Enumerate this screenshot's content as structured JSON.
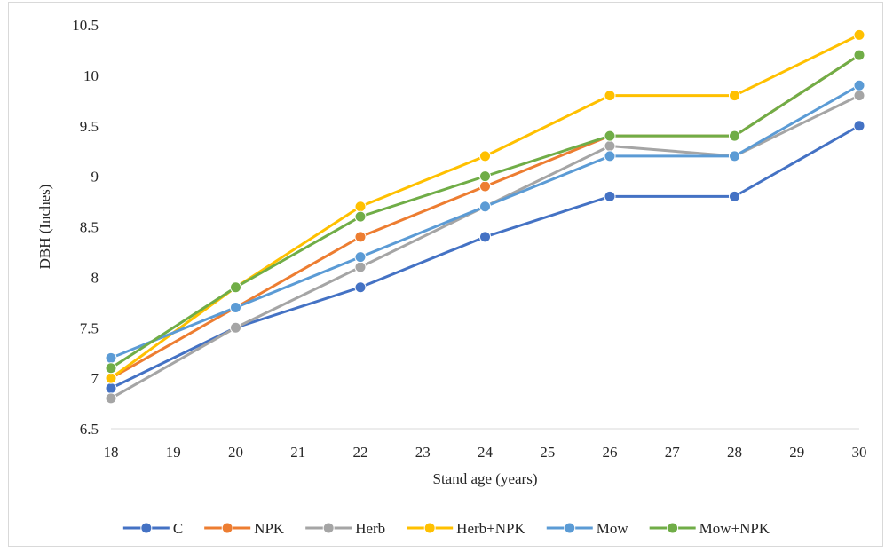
{
  "chart_data": {
    "type": "line",
    "title": "",
    "xlabel": "Stand age (years)",
    "ylabel": "DBH (Inches)",
    "xlim": [
      18,
      30
    ],
    "ylim": [
      6.5,
      10.5
    ],
    "x_ticks": [
      "18",
      "19",
      "20",
      "21",
      "22",
      "23",
      "24",
      "25",
      "26",
      "27",
      "28",
      "29",
      "30"
    ],
    "y_ticks": [
      "6.5",
      "7",
      "7.5",
      "8",
      "8.5",
      "9",
      "9.5",
      "10",
      "10.5"
    ],
    "x": [
      18,
      20,
      22,
      24,
      26,
      28,
      30
    ],
    "grid": false,
    "legend_position": "bottom",
    "series": [
      {
        "name": "C",
        "color": "#4472c4",
        "values": [
          6.9,
          7.5,
          7.9,
          8.4,
          8.8,
          8.8,
          9.5
        ]
      },
      {
        "name": "NPK",
        "color": "#ed7d31",
        "values": [
          7.0,
          7.7,
          8.4,
          8.9,
          9.4,
          9.4,
          10.2
        ]
      },
      {
        "name": "Herb",
        "color": "#a5a5a5",
        "values": [
          6.8,
          7.5,
          8.1,
          8.7,
          9.3,
          9.2,
          9.8
        ]
      },
      {
        "name": "Herb+NPK",
        "color": "#ffc000",
        "values": [
          7.0,
          7.9,
          8.7,
          9.2,
          9.8,
          9.8,
          10.4
        ]
      },
      {
        "name": "Mow",
        "color": "#5b9bd5",
        "values": [
          7.2,
          7.7,
          8.2,
          8.7,
          9.2,
          9.2,
          9.9
        ]
      },
      {
        "name": "Mow+NPK",
        "color": "#70ad47",
        "values": [
          7.1,
          7.9,
          8.6,
          9.0,
          9.4,
          9.4,
          10.2
        ]
      }
    ]
  }
}
